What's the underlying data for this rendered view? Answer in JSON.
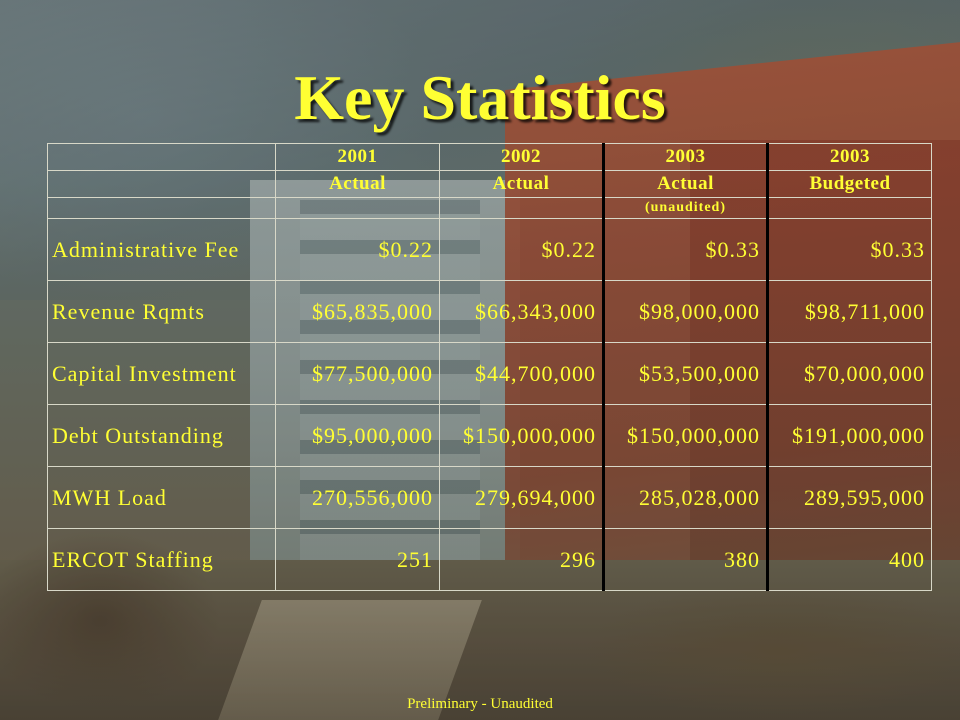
{
  "slide": {
    "title": "Key Statistics",
    "footer": "Preliminary - Unaudited"
  },
  "table": {
    "years": [
      "2001",
      "2002",
      "2003",
      "2003"
    ],
    "statuses": [
      "Actual",
      "Actual",
      "Actual",
      "Budgeted"
    ],
    "notes": [
      "",
      "",
      "(unaudited)",
      ""
    ],
    "rows": [
      {
        "label": "Administrative Fee",
        "values": [
          "$0.22",
          "$0.22",
          "$0.33",
          "$0.33"
        ]
      },
      {
        "label": "Revenue Rqmts",
        "values": [
          "$65,835,000",
          "$66,343,000",
          "$98,000,000",
          "$98,711,000"
        ]
      },
      {
        "label": "Capital Investment",
        "values": [
          "$77,500,000",
          "$44,700,000",
          "$53,500,000",
          "$70,000,000"
        ]
      },
      {
        "label": "Debt Outstanding",
        "values": [
          "$95,000,000",
          "$150,000,000",
          "$150,000,000",
          "$191,000,000"
        ]
      },
      {
        "label": "MWH Load",
        "values": [
          "270,556,000",
          "279,694,000",
          "285,028,000",
          "289,595,000"
        ]
      },
      {
        "label": "ERCOT Staffing",
        "values": [
          "251",
          "296",
          "380",
          "400"
        ]
      }
    ]
  },
  "colors": {
    "text": "#ffff33",
    "highlight_border": "#000000",
    "grid": "#d8d8c8"
  }
}
